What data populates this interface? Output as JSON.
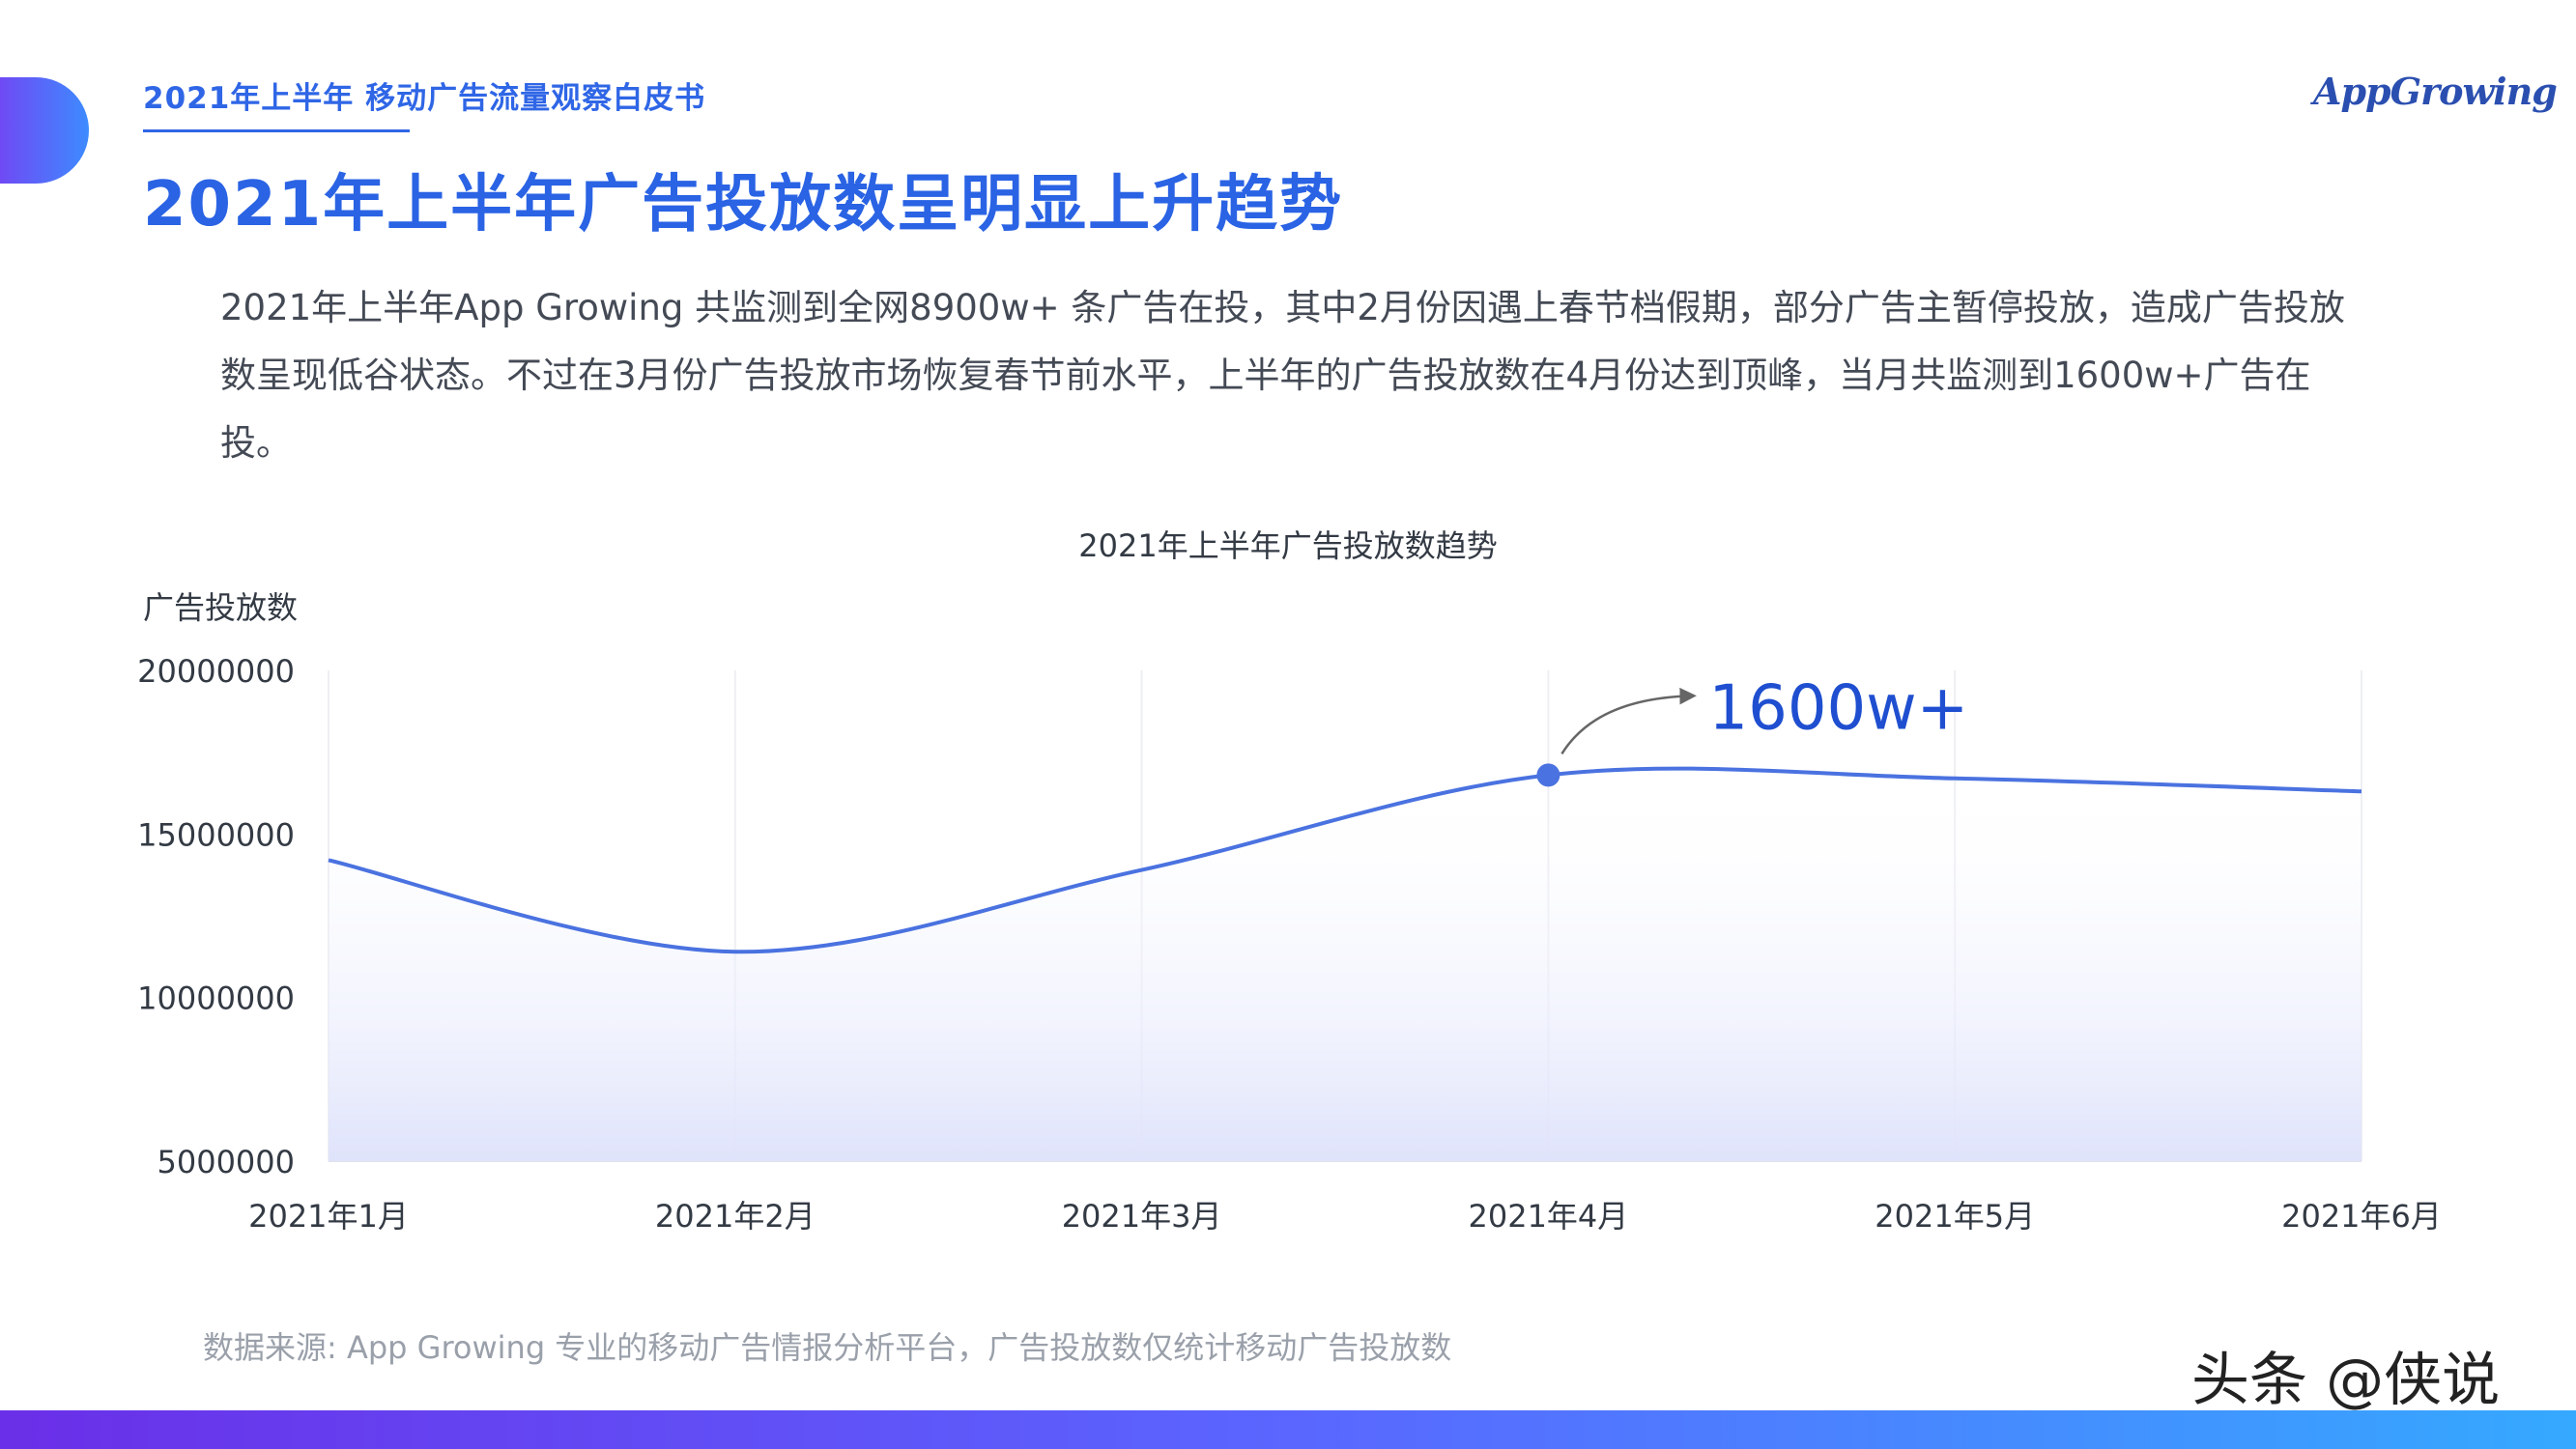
{
  "header": {
    "subtitle": "2021年上半年 移动广告流量观察白皮书",
    "title": "2021年上半年广告投放数呈明显上升趋势",
    "brand": "AppGrowing"
  },
  "intro": {
    "text": "2021年上半年App Growing 共监测到全网8900w+ 条广告在投，其中2月份因遇上春节档假期，部分广告主暂停投放，造成广告投放数呈现低谷状态。不过在3月份广告投放市场恢复春节前水平，上半年的广告投放数在4月份达到顶峰，当月共监测到1600w+广告在投。"
  },
  "footer": {
    "source": "数据来源: App Growing 专业的移动广告情报分析平台，广告投放数仅统计移动广告投放数",
    "watermark": "头条 @侠说"
  },
  "colors": {
    "accent": "#2a63e4",
    "line": "#4a72e0",
    "annotation": "#1f4fd0"
  },
  "chart_data": {
    "type": "area",
    "title": "2021年上半年广告投放数趋势",
    "ylabel": "广告投放数",
    "xlabel": "",
    "categories": [
      "2021年1月",
      "2021年2月",
      "2021年3月",
      "2021年4月",
      "2021年5月",
      "2021年6月"
    ],
    "values": [
      14200000,
      11400000,
      13900000,
      16800000,
      16700000,
      16300000
    ],
    "ylim": [
      5000000,
      20000000
    ],
    "yticks": [
      "20000000",
      "15000000",
      "10000000",
      "5000000"
    ],
    "grid": "vertical",
    "annotation": {
      "label": "1600w+",
      "category": "2021年4月"
    }
  }
}
